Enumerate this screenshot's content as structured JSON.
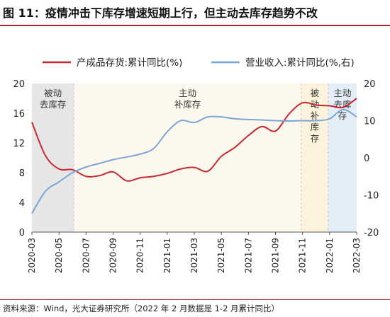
{
  "title": "图 11：疫情冲击下库存增速短期上行，但主动去库存趋势不改",
  "source": "资料来源：Wind，光大证券研究所（2022 年 2 月数据是 1-2 月累计同比）",
  "colors": {
    "inventory": "#c5282f",
    "revenue": "#7aa6d6",
    "rule": "#b3212a",
    "phase_passive_destock": "#e6e6e6",
    "phase_active_restock": "#fdf8ee",
    "phase_passive_restock": "#fdf3dc",
    "phase_active_destock": "#e4eef8"
  },
  "chart_data": {
    "type": "line",
    "title": "图 11：疫情冲击下库存增速短期上行，但主动去库存趋势不改",
    "x": [
      "2020-03",
      "2020-04",
      "2020-05",
      "2020-06",
      "2020-07",
      "2020-08",
      "2020-09",
      "2020-10",
      "2020-11",
      "2020-12",
      "2021-01",
      "2021-02",
      "2021-03",
      "2021-04",
      "2021-05",
      "2021-06",
      "2021-07",
      "2021-08",
      "2021-09",
      "2021-10",
      "2021-11",
      "2021-12",
      "2022-01",
      "2022-02",
      "2022-03"
    ],
    "x_ticks": [
      "2020-03",
      "2020-05",
      "2020-07",
      "2020-09",
      "2020-11",
      "2021-01",
      "2021-03",
      "2021-05",
      "2021-07",
      "2021-09",
      "2021-11",
      "2022-01",
      "2022-03"
    ],
    "series": [
      {
        "name": "产成品存货:累计同比(%)",
        "axis": "left",
        "values": [
          14.8,
          10.3,
          8.5,
          8.4,
          7.5,
          7.6,
          8.1,
          6.9,
          7.3,
          7.5,
          7.9,
          8.5,
          8.7,
          8.2,
          10.2,
          11.4,
          13.0,
          14.2,
          13.6,
          15.9,
          17.4,
          17.1,
          17.0,
          16.8,
          18.0
        ]
      },
      {
        "name": "营业收入:累计同比(%,右)",
        "axis": "right",
        "values": [
          -15.0,
          -9.0,
          -6.5,
          -4.0,
          -2.5,
          -1.5,
          -0.5,
          0.2,
          1.0,
          2.5,
          7.0,
          10.0,
          9.5,
          11.0,
          11.0,
          10.5,
          10.3,
          10.2,
          10.0,
          9.9,
          10.0,
          10.0,
          10.5,
          13.0,
          11.0
        ]
      }
    ],
    "y_left": {
      "min": 0,
      "max": 20,
      "ticks": [
        0,
        4,
        8,
        12,
        16,
        20
      ]
    },
    "y_right": {
      "min": -20,
      "max": 20,
      "ticks": [
        -20,
        -10,
        0,
        10,
        20
      ]
    },
    "phases": [
      {
        "label": "被动去库存",
        "lines": [
          "被动",
          "去库存"
        ],
        "start": 0,
        "end": 3.1,
        "color_key": "phase_passive_destock"
      },
      {
        "label": "主动补库存",
        "lines": [
          "主动",
          "补库存"
        ],
        "start": 3.1,
        "end": 19.9,
        "color_key": "phase_active_restock"
      },
      {
        "label": "被动补库存",
        "lines": [
          "被",
          "动",
          "补",
          "库",
          "存"
        ],
        "start": 19.9,
        "end": 21.9,
        "color_key": "phase_passive_restock"
      },
      {
        "label": "主动去库存",
        "lines": [
          "主动",
          "去库",
          "存"
        ],
        "start": 21.9,
        "end": 24,
        "color_key": "phase_active_destock"
      }
    ],
    "legend_position": "top",
    "grid": false
  }
}
